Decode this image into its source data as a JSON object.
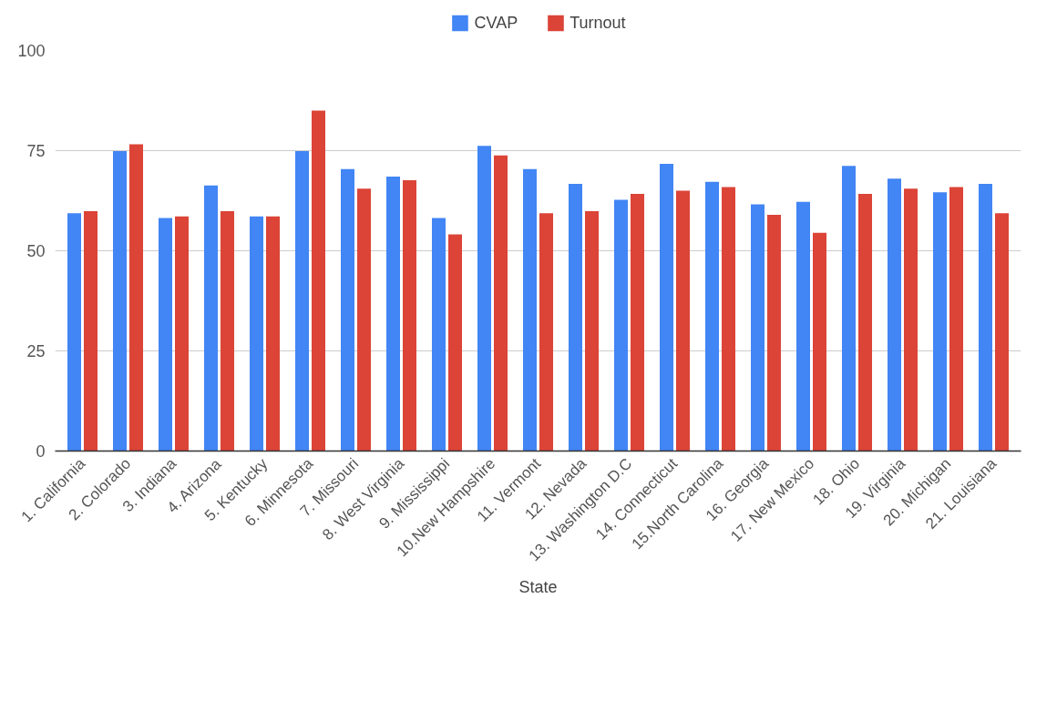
{
  "chart_data": {
    "type": "bar",
    "xlabel": "State",
    "categories": [
      "1. California",
      "2. Colorado",
      "3. Indiana",
      "4. Arizona",
      "5. Kentucky",
      "6. Minnesota",
      "7. Missouri",
      "8. West Virginia",
      "9. Mississippi",
      "10.New Hampshire",
      "11. Vermont",
      "12. Nevada",
      "13. Washington D.C",
      "14. Connecticut",
      "15.North Carolina",
      "16. Georgia",
      "17. New Mexico",
      "18. Ohio",
      "19. Virginia",
      "20. Michigan",
      "21. Louisiana"
    ],
    "series": [
      {
        "name": "CVAP",
        "color": "#4285f4",
        "values": [
          59.4,
          74.9,
          58.2,
          66.3,
          58.6,
          74.9,
          70.4,
          68.5,
          58.2,
          76.2,
          70.4,
          66.7,
          62.7,
          71.7,
          67.2,
          61.6,
          62.2,
          71.2,
          68.0,
          64.6,
          66.7
        ]
      },
      {
        "name": "Turnout",
        "color": "#db4437",
        "values": [
          59.9,
          76.6,
          58.6,
          59.9,
          58.6,
          85.0,
          65.5,
          67.6,
          54.1,
          73.8,
          59.4,
          59.9,
          64.2,
          65.0,
          65.9,
          59.0,
          54.5,
          64.2,
          65.5,
          65.9,
          59.4
        ]
      }
    ],
    "ylim": [
      0,
      100
    ],
    "yticks": [
      0,
      25,
      50,
      75,
      100
    ],
    "grid": "y",
    "legend": "top"
  }
}
